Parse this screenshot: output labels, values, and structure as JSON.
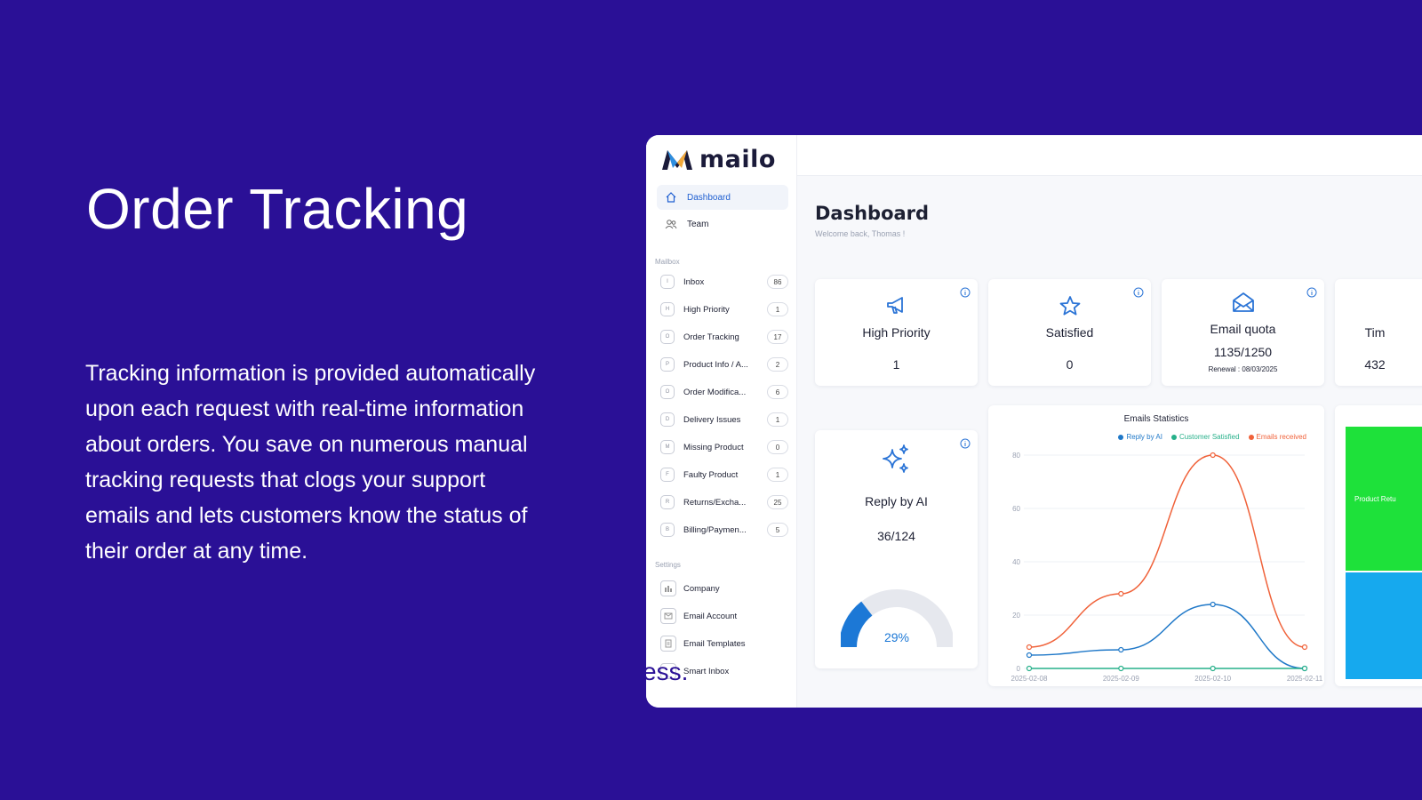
{
  "hero": {
    "title": "Order Tracking",
    "description": "Tracking information is provided automatically upon each request with real-time information about orders. You save on numerous manual tracking requests that clogs your support emails and lets customers know the status of their order at any time."
  },
  "app": {
    "logo_text": "mailo",
    "nav": [
      {
        "label": "Dashboard",
        "icon": "home-icon",
        "active": true
      },
      {
        "label": "Team",
        "icon": "team-icon",
        "active": false
      }
    ],
    "mailbox_label": "Mailbox",
    "mailbox": [
      {
        "letter": "I",
        "label": "Inbox",
        "count": "86"
      },
      {
        "letter": "H",
        "label": "High Priority",
        "count": "1"
      },
      {
        "letter": "O",
        "label": "Order Tracking",
        "count": "17"
      },
      {
        "letter": "P",
        "label": "Product Info / A...",
        "count": "2"
      },
      {
        "letter": "O",
        "label": "Order Modifica...",
        "count": "6"
      },
      {
        "letter": "D",
        "label": "Delivery Issues",
        "count": "1"
      },
      {
        "letter": "M",
        "label": "Missing Product",
        "count": "0"
      },
      {
        "letter": "F",
        "label": "Faulty Product",
        "count": "1"
      },
      {
        "letter": "R",
        "label": "Returns/Excha...",
        "count": "25"
      },
      {
        "letter": "B",
        "label": "Billing/Paymen...",
        "count": "5"
      }
    ],
    "settings_label": "Settings",
    "settings": [
      {
        "label": "Company",
        "icon": "company-icon"
      },
      {
        "label": "Email Account",
        "icon": "email-account-icon"
      },
      {
        "label": "Email Templates",
        "icon": "email-templates-icon"
      },
      {
        "label": "Smart Inbox",
        "icon": "smart-inbox-icon"
      }
    ],
    "overlay_fragment": "ess.",
    "dashboard": {
      "title": "Dashboard",
      "subtitle": "Welcome back, Thomas !",
      "cards": [
        {
          "title": "High Priority",
          "value": "1",
          "icon": "megaphone-icon"
        },
        {
          "title": "Satisfied",
          "value": "0",
          "icon": "star-icon"
        },
        {
          "title": "Email quota",
          "value": "1135/1250",
          "note": "Renewal : 08/03/2025",
          "icon": "envelope-open-icon"
        },
        {
          "title": "Tim",
          "value": "432",
          "icon": "clock-icon"
        }
      ],
      "reply_ai": {
        "title": "Reply by AI",
        "value": "36/124",
        "percent_label": "29%",
        "percent": 29,
        "icon": "sparkles-icon"
      },
      "treemap": {
        "label": "Product Retu",
        "color_top": "#1ee13a",
        "color_bottom": "#16a9ee"
      }
    },
    "colors": {
      "accent": "#1f5fd1",
      "background": "#2a1096"
    }
  },
  "chart_data": {
    "type": "line",
    "title": "Emails Statistics",
    "x": [
      "2025-02-08",
      "2025-02-09",
      "2025-02-10",
      "2025-02-11"
    ],
    "ylim": [
      0,
      80
    ],
    "yticks": [
      0,
      20,
      40,
      60,
      80
    ],
    "series": [
      {
        "name": "Reply by AI",
        "color": "#1f78c8",
        "values": [
          5,
          7,
          24,
          0
        ]
      },
      {
        "name": "Customer Satisfied",
        "color": "#27b08a",
        "values": [
          0,
          0,
          0,
          0
        ]
      },
      {
        "name": "Emails received",
        "color": "#f0623a",
        "values": [
          8,
          28,
          80,
          8
        ]
      }
    ],
    "legend": "top-right",
    "grid": true
  }
}
